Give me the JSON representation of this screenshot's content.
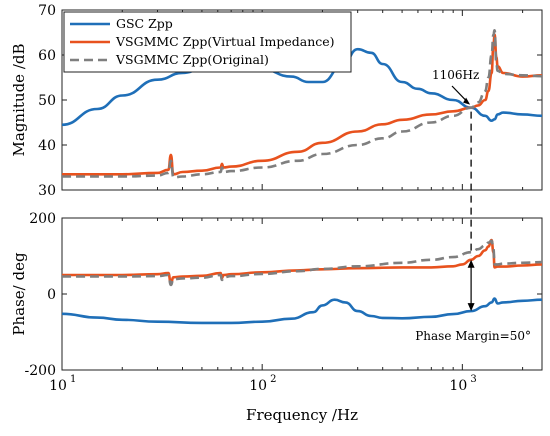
{
  "chart_data": [
    {
      "type": "line",
      "subplot": "magnitude",
      "xlabel": "Frequency /Hz",
      "ylabel": "Magnitude /dB",
      "x_scale": "log",
      "xlim": [
        10,
        2500
      ],
      "ylim": [
        30,
        70
      ],
      "yticks": [
        "30",
        "40",
        "50",
        "60",
        "70"
      ],
      "grid": false,
      "legend_position": "top-left",
      "series": [
        {
          "name": "GSC Zpp",
          "color": "#1f6fb8",
          "style": "solid",
          "x": [
            10,
            15,
            20,
            30,
            40,
            50,
            70,
            100,
            140,
            170,
            200,
            250,
            300,
            350,
            400,
            500,
            600,
            700,
            900,
            1106,
            1300,
            1400,
            1450,
            1500,
            1600,
            2000,
            2500
          ],
          "y": [
            44.5,
            48,
            51,
            54.5,
            56,
            56.8,
            57.2,
            56.8,
            55.2,
            54,
            54,
            57.5,
            61.3,
            60.5,
            58,
            54,
            52.5,
            51.5,
            50,
            48.3,
            46.5,
            45.4,
            45.7,
            46.8,
            47.2,
            46.8,
            46.5
          ]
        },
        {
          "name": "VSGMMC Zpp(Virtual Impedance)",
          "color": "#e8521e",
          "style": "solid",
          "x": [
            10,
            20,
            30,
            34,
            35,
            36,
            40,
            50,
            62,
            63,
            64,
            70,
            100,
            150,
            200,
            300,
            400,
            500,
            700,
            900,
            1106,
            1200,
            1300,
            1350,
            1400,
            1430,
            1450,
            1480,
            1500,
            1600,
            2000,
            2500
          ],
          "y": [
            33.5,
            33.5,
            33.8,
            34.5,
            37.8,
            33.5,
            34,
            34.3,
            35,
            35.8,
            35,
            35.2,
            36.5,
            38.5,
            40.5,
            43,
            44.6,
            45.6,
            46.8,
            47.5,
            48.3,
            48.8,
            50,
            52,
            56,
            62,
            64.5,
            59.5,
            57.5,
            56,
            55.2,
            55.5
          ]
        },
        {
          "name": "VSGMMC Zpp(Original)",
          "color": "#7f7f7f",
          "style": "dashed",
          "x": [
            10,
            20,
            30,
            34,
            35,
            36,
            40,
            50,
            62,
            63,
            64,
            70,
            100,
            150,
            200,
            300,
            400,
            500,
            700,
            900,
            1106,
            1200,
            1300,
            1350,
            1400,
            1430,
            1450,
            1480,
            1500,
            1600,
            2000,
            2500
          ],
          "y": [
            33,
            33,
            33.2,
            33.8,
            36.5,
            32.8,
            33,
            33.5,
            34,
            35,
            34,
            34.2,
            35,
            36.5,
            38,
            40,
            41.5,
            43,
            45,
            46.5,
            48.3,
            49.5,
            52,
            55,
            60,
            64.5,
            65.5,
            58,
            56.5,
            55.8,
            55.5,
            55.3
          ]
        }
      ],
      "annotations": [
        {
          "text": "1106Hz",
          "x": 1106,
          "y": 48.3
        }
      ]
    },
    {
      "type": "line",
      "subplot": "phase",
      "xlabel": "Frequency /Hz",
      "ylabel": "Phase/ deg",
      "x_scale": "log",
      "xlim": [
        10,
        2500
      ],
      "ylim": [
        -200,
        200
      ],
      "xticks": [
        "10",
        "10",
        "10"
      ],
      "xtick_exponents": [
        "1",
        "2",
        "3"
      ],
      "yticks": [
        "-200",
        "0",
        "200"
      ],
      "grid": false,
      "series": [
        {
          "name": "GSC Zpp",
          "color": "#1f6fb8",
          "style": "solid",
          "x": [
            10,
            15,
            20,
            30,
            50,
            70,
            100,
            140,
            180,
            200,
            230,
            260,
            300,
            350,
            400,
            500,
            700,
            900,
            1106,
            1300,
            1400,
            1450,
            1500,
            1600,
            2000,
            2500
          ],
          "y": [
            -52,
            -62,
            -68,
            -73,
            -76,
            -76,
            -73,
            -65,
            -48,
            -30,
            -15,
            -22,
            -45,
            -58,
            -63,
            -64,
            -60,
            -53,
            -45,
            -32,
            -22,
            -12,
            -25,
            -22,
            -18,
            -15
          ]
        },
        {
          "name": "VSGMMC Zpp(Virtual Impedance)",
          "color": "#e8521e",
          "style": "solid",
          "x": [
            10,
            20,
            30,
            34,
            35,
            36,
            40,
            50,
            62,
            63,
            64,
            70,
            100,
            150,
            200,
            300,
            500,
            700,
            900,
            1000,
            1106,
            1200,
            1300,
            1350,
            1400,
            1430,
            1450,
            1500,
            1600,
            2000,
            2500
          ],
          "y": [
            50,
            50,
            52,
            55,
            28,
            44,
            46,
            48,
            55,
            42,
            50,
            52,
            57,
            62,
            65,
            68,
            70,
            70,
            73,
            78,
            90,
            100,
            115,
            125,
            142,
            110,
            70,
            72,
            72,
            75,
            78
          ]
        },
        {
          "name": "VSGMMC Zpp(Original)",
          "color": "#7f7f7f",
          "style": "dashed",
          "x": [
            10,
            20,
            30,
            34,
            35,
            36,
            40,
            50,
            62,
            63,
            64,
            70,
            100,
            150,
            200,
            300,
            500,
            700,
            900,
            1106,
            1200,
            1300,
            1350,
            1400,
            1430,
            1450,
            1500,
            1600,
            2000,
            2500
          ],
          "y": [
            46,
            46,
            47,
            50,
            24,
            39,
            41,
            43,
            50,
            37,
            44,
            47,
            53,
            60,
            66,
            73,
            82,
            90,
            97,
            110,
            118,
            128,
            135,
            140,
            120,
            78,
            78,
            80,
            82,
            84
          ]
        }
      ],
      "annotations": [
        {
          "text": "Phase Margin=50°",
          "x": 1106,
          "y_from": -45,
          "y_to": 90
        }
      ]
    }
  ]
}
